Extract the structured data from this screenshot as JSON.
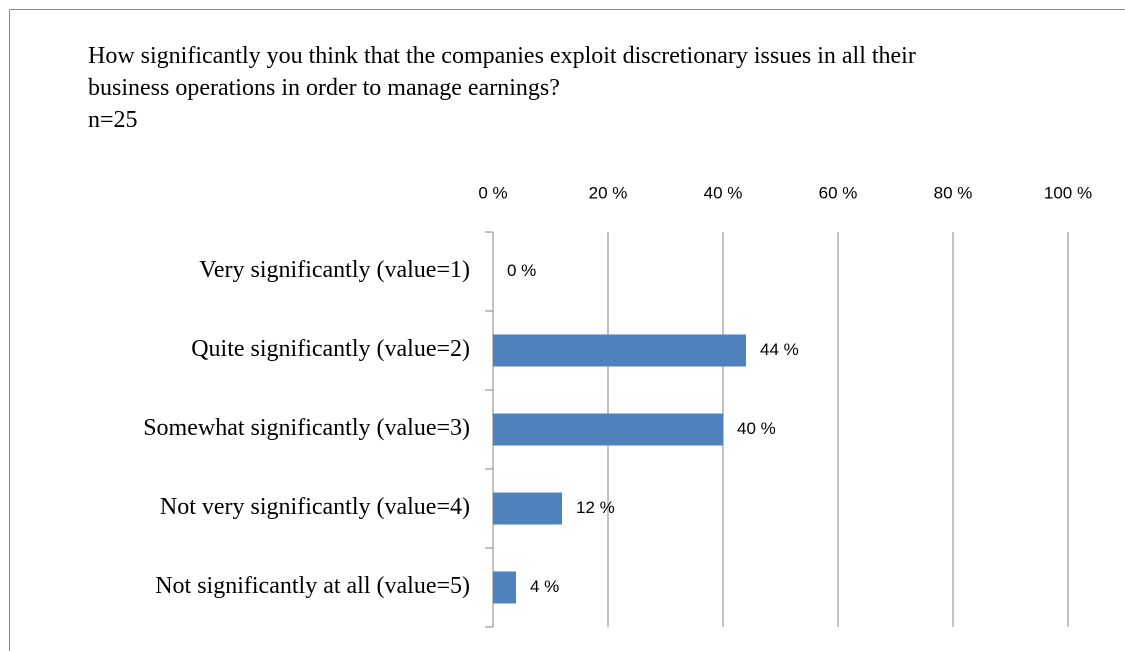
{
  "chart_data": {
    "type": "hbar",
    "title": "How significantly you think that the companies exploit discretionary issues in all their business operations in order to manage earnings?",
    "subtitle": "n=25",
    "categories": [
      "Very significantly (value=1)",
      "Quite significantly (value=2)",
      "Somewhat significantly (value=3)",
      "Not very significantly (value=4)",
      "Not significantly at all (value=5)"
    ],
    "values": [
      0,
      44,
      40,
      12,
      4
    ],
    "value_labels": [
      "0 %",
      "44 %",
      "40 %",
      "12 %",
      "4 %"
    ],
    "color": "#4f81bd",
    "xlim": [
      0,
      100
    ],
    "xticks": [
      {
        "value": 0,
        "label": "0 %"
      },
      {
        "value": 20,
        "label": "20 %"
      },
      {
        "value": 40,
        "label": "40 %"
      },
      {
        "value": 60,
        "label": "60 %"
      },
      {
        "value": 80,
        "label": "80 %"
      },
      {
        "value": 100,
        "label": "100 %"
      }
    ],
    "grid": true
  }
}
